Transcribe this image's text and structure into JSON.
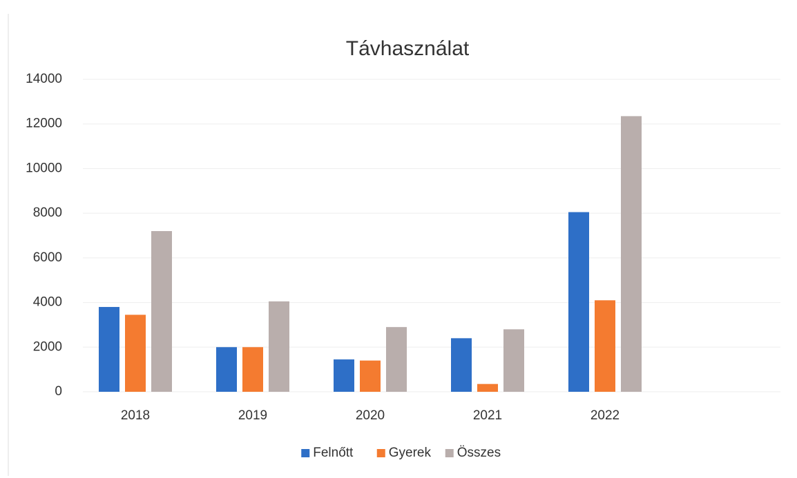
{
  "chart_data": {
    "type": "bar",
    "title": "Távhasználat",
    "categories": [
      "2018",
      "2019",
      "2020",
      "2021",
      "2022"
    ],
    "series": [
      {
        "name": "Felnőtt",
        "color": "#2e6fc7",
        "values": [
          3800,
          2000,
          1450,
          2400,
          8050
        ]
      },
      {
        "name": "Gyerek",
        "color": "#f47b30",
        "values": [
          3450,
          2000,
          1400,
          350,
          4100
        ]
      },
      {
        "name": "Összes",
        "color": "#b9aeac",
        "values": [
          7200,
          4050,
          2900,
          2800,
          12350
        ]
      }
    ],
    "ylim": [
      0,
      14000
    ],
    "yticks": [
      0,
      2000,
      4000,
      6000,
      8000,
      10000,
      12000,
      14000
    ],
    "grid": true,
    "legend": "bottom"
  }
}
